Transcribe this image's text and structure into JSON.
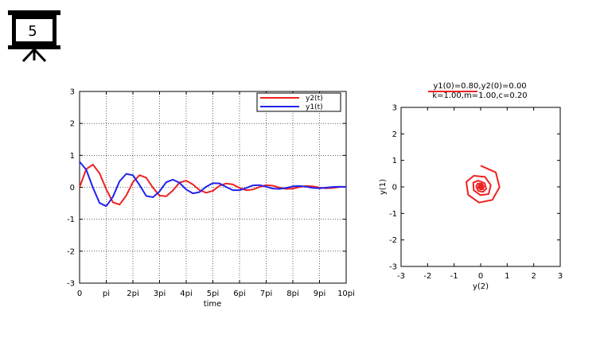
{
  "slide": {
    "badge_number": "5"
  },
  "chart_data": [
    {
      "type": "line",
      "xlabel": "time",
      "ylabel": "",
      "xlim": [
        0,
        31.4159
      ],
      "ylim": [
        -3,
        3
      ],
      "x_ticks": [
        {
          "value": 0,
          "label": "0"
        },
        {
          "value": 3.1416,
          "label": "pi"
        },
        {
          "value": 6.2832,
          "label": "2pi"
        },
        {
          "value": 9.4248,
          "label": "3pi"
        },
        {
          "value": 12.5664,
          "label": "4pi"
        },
        {
          "value": 15.708,
          "label": "5pi"
        },
        {
          "value": 18.8496,
          "label": "6pi"
        },
        {
          "value": 21.9911,
          "label": "7pi"
        },
        {
          "value": 25.1327,
          "label": "8pi"
        },
        {
          "value": 28.2743,
          "label": "9pi"
        },
        {
          "value": 31.4159,
          "label": "10pi"
        }
      ],
      "y_ticks": [
        "-3",
        "-2",
        "-1",
        "0",
        "1",
        "2",
        "3"
      ],
      "grid": true,
      "legend_position": "top-right",
      "series": [
        {
          "name": "y2(t)",
          "color": "#ee2222",
          "x": [
            0,
            0.7854,
            1.5708,
            2.3562,
            3.1416,
            3.927,
            4.7124,
            5.4978,
            6.2832,
            7.0686,
            7.854,
            8.6394,
            9.4248,
            10.2102,
            10.9956,
            11.781,
            12.5664,
            13.3518,
            14.1372,
            14.9226,
            15.708,
            16.4934,
            17.2788,
            18.0642,
            18.8496,
            19.635,
            20.4204,
            21.2058,
            21.9911,
            22.7765,
            23.5619,
            24.3473,
            25.1327,
            25.9181,
            26.7035,
            27.4889,
            28.2743,
            29.0597,
            29.8451,
            30.6305,
            31.4159
          ],
          "y": [
            0,
            0.57,
            0.71,
            0.44,
            -0.06,
            -0.47,
            -0.54,
            -0.26,
            0.16,
            0.38,
            0.3,
            -0.01,
            -0.26,
            -0.28,
            -0.1,
            0.15,
            0.21,
            0.09,
            -0.09,
            -0.17,
            -0.11,
            0.05,
            0.12,
            0.09,
            -0.02,
            -0.09,
            -0.07,
            0.01,
            0.07,
            0.05,
            -0.01,
            -0.05,
            -0.04,
            0.01,
            0.04,
            0.03,
            -0.01,
            -0.03,
            -0.02,
            0.01,
            0.02
          ]
        },
        {
          "name": "y1(t)",
          "color": "#2222ee",
          "x": [
            0,
            0.7854,
            1.5708,
            2.3562,
            3.1416,
            3.927,
            4.7124,
            5.4978,
            6.2832,
            7.0686,
            7.854,
            8.6394,
            9.4248,
            10.2102,
            10.9956,
            11.781,
            12.5664,
            13.3518,
            14.1372,
            14.9226,
            15.708,
            16.4934,
            17.2788,
            18.0642,
            18.8496,
            19.635,
            20.4204,
            21.2058,
            21.9911,
            22.7765,
            23.5619,
            24.3473,
            25.1327,
            25.9181,
            26.7035,
            27.4889,
            28.2743,
            29.0597,
            29.8451,
            30.6305,
            31.4159
          ],
          "y": [
            0.8,
            0.55,
            -0.01,
            -0.49,
            -0.59,
            -0.3,
            0.19,
            0.42,
            0.38,
            0.07,
            -0.27,
            -0.31,
            -0.13,
            0.16,
            0.24,
            0.14,
            -0.07,
            -0.19,
            -0.15,
            0.02,
            0.13,
            0.12,
            0.01,
            -0.09,
            -0.09,
            -0.02,
            0.06,
            0.07,
            0.02,
            -0.04,
            -0.05,
            -0.02,
            0.03,
            0.04,
            0.02,
            -0.02,
            -0.03,
            -0.01,
            0.01,
            0.02,
            0.01
          ]
        }
      ]
    },
    {
      "type": "line",
      "title_lines": [
        "y1(0)=0.80,y2(0)=0.00",
        "k=1.00,m=1.00,c=0.20"
      ],
      "xlabel": "y(2)",
      "ylabel": "y(1)",
      "xlim": [
        -3,
        3
      ],
      "ylim": [
        -3,
        3
      ],
      "x_ticks": [
        "-3",
        "-2",
        "-1",
        "0",
        "1",
        "2",
        "3"
      ],
      "y_ticks": [
        "-3",
        "-2",
        "-1",
        "0",
        "1",
        "2",
        "3"
      ],
      "grid": false,
      "series": [
        {
          "color": "#ee2222",
          "x": [
            0,
            0.57,
            0.71,
            0.44,
            -0.06,
            -0.47,
            -0.54,
            -0.26,
            0.16,
            0.38,
            0.3,
            -0.01,
            -0.26,
            -0.28,
            -0.1,
            0.15,
            0.21,
            0.09,
            -0.09,
            -0.17,
            -0.11,
            0.05,
            0.12,
            0.09,
            -0.02,
            -0.09,
            -0.07,
            0.01,
            0.07,
            0.05,
            -0.01,
            -0.05,
            -0.04,
            0.01,
            0.04,
            0.03,
            -0.01,
            -0.03,
            -0.02,
            0.01,
            0.02
          ],
          "y": [
            0.8,
            0.55,
            -0.01,
            -0.49,
            -0.59,
            -0.3,
            0.19,
            0.42,
            0.38,
            0.07,
            -0.27,
            -0.31,
            -0.13,
            0.16,
            0.24,
            0.14,
            -0.07,
            -0.19,
            -0.15,
            0.02,
            0.13,
            0.12,
            0.01,
            -0.09,
            -0.09,
            -0.02,
            0.06,
            0.07,
            0.02,
            -0.04,
            -0.05,
            -0.02,
            0.03,
            0.04,
            0.02,
            -0.02,
            -0.03,
            -0.01,
            0.01,
            0.02,
            0.01
          ]
        }
      ]
    }
  ]
}
